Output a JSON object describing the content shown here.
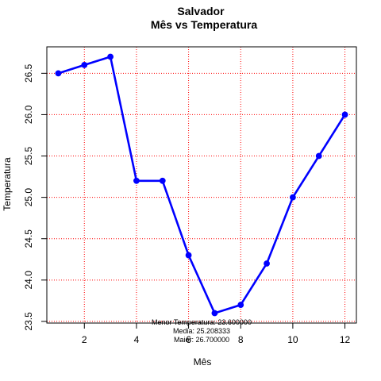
{
  "chart_data": {
    "type": "line",
    "title": "Salvador",
    "subtitle": "Mês vs Temperatura",
    "xlabel": "Mês",
    "ylabel": "Temperatura",
    "x": [
      1,
      2,
      3,
      4,
      5,
      6,
      7,
      8,
      9,
      10,
      11,
      12
    ],
    "series": [
      {
        "values": [
          26.5,
          26.6,
          26.7,
          25.2,
          25.2,
          24.3,
          23.6,
          23.7,
          24.2,
          25.0,
          25.5,
          26.0
        ]
      }
    ],
    "xlim": [
      0.56,
      12.44
    ],
    "ylim": [
      23.48,
      26.82
    ],
    "xticks": [
      2,
      4,
      6,
      8,
      10,
      12
    ],
    "xtick_labels": [
      "2",
      "4",
      "6",
      "8",
      "10",
      "12"
    ],
    "yticks": [
      23.5,
      24.0,
      24.5,
      25.0,
      25.5,
      26.0,
      26.5
    ],
    "ytick_labels": [
      "23.5",
      "24.0",
      "24.5",
      "25.0",
      "25.5",
      "26.0",
      "26.5"
    ],
    "grid": true,
    "colors": {
      "line": "#0000ff",
      "grid": "#ff0000"
    },
    "annotations": [
      "Menor Temperatura: 23.600000",
      "Media: 25.208333",
      "Maior: 26.700000"
    ]
  }
}
